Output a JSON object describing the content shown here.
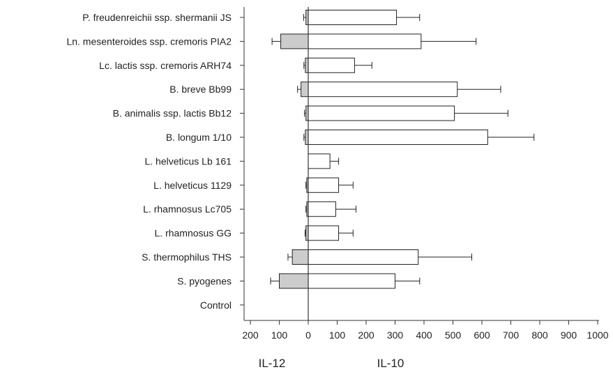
{
  "chart_data": {
    "type": "bar",
    "orientation": "horizontal-diverging",
    "title": "",
    "categories": [
      "P. freudenreichii ssp. shermanii JS",
      "Ln. mesenteroides ssp. cremoris PIA2",
      "Lc. lactis ssp. cremoris ARH74",
      "B. breve Bb99",
      "B. animalis ssp. lactis Bb12",
      "B. longum 1/10",
      "L. helveticus Lb 161",
      "L. helveticus 1129",
      "L. rhamnosus Lc705",
      "L. rhamnosus GG",
      "S. thermophilus THS",
      "S. pyogenes",
      "Control"
    ],
    "series": [
      {
        "name": "IL-12",
        "direction": "left",
        "color": "#cccccc",
        "values": [
          8,
          95,
          10,
          25,
          8,
          10,
          0,
          5,
          5,
          8,
          55,
          100,
          0
        ],
        "errors": [
          8,
          30,
          5,
          12,
          5,
          5,
          0,
          3,
          3,
          3,
          15,
          30,
          0
        ]
      },
      {
        "name": "IL-10",
        "direction": "right",
        "color": "#ffffff",
        "values": [
          305,
          390,
          160,
          515,
          505,
          620,
          75,
          105,
          95,
          105,
          380,
          300,
          0
        ],
        "errors": [
          80,
          190,
          60,
          150,
          185,
          160,
          30,
          50,
          70,
          50,
          185,
          85,
          0
        ]
      }
    ],
    "xlim": [
      -200,
      1000
    ],
    "xtick_labels": [
      "200",
      "100",
      "0",
      "100",
      "200",
      "300",
      "400",
      "500",
      "600",
      "700",
      "800",
      "900",
      "1000"
    ],
    "group_labels": [
      "IL-12",
      "IL-10"
    ],
    "grid": false,
    "legend": "none"
  }
}
